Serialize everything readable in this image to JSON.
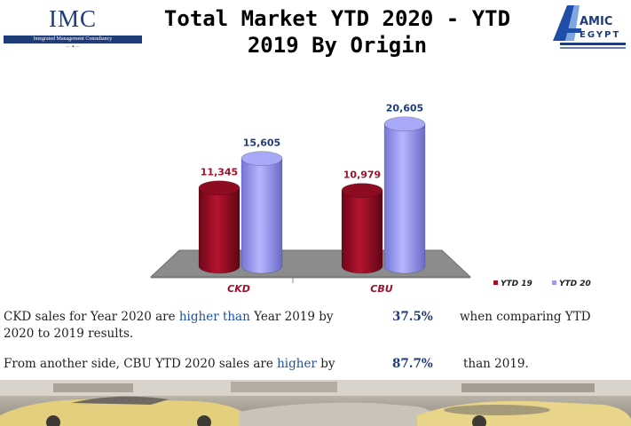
{
  "header": {
    "title_line1": "Total Market YTD 2020 - YTD",
    "title_line2": "2019 By Origin",
    "imc_logo_text": "IMC",
    "imc_logo_sub": "Integrated Management Consultancy",
    "amic_logo_text": "AMIC",
    "amic_logo_sub": "EGYPT"
  },
  "chart_data": {
    "type": "bar",
    "categories": [
      "CKD",
      "CBU"
    ],
    "series": [
      {
        "name": "YTD 19",
        "values": [
          11345,
          10979
        ],
        "labels": [
          "11,345",
          "10,979"
        ],
        "color": "#a0102a",
        "label_color": "#a0102a"
      },
      {
        "name": "YTD 20",
        "values": [
          15605,
          20605
        ],
        "labels": [
          "15,605",
          "20,605"
        ],
        "color": "#9b9bf2",
        "label_color": "#1f3c7a"
      }
    ],
    "ylim": [
      0,
      24000
    ],
    "grid": false,
    "legend_position": "bottom-right",
    "floor_color": "#8c8c8c",
    "category_label_color": "#a0102a"
  },
  "text": {
    "p1_a": "CKD sales for Year 2020 are ",
    "p1_hl": "higher than",
    "p1_b": " Year 2019 by",
    "p1_pct": "37.5%",
    "p1_c": "when comparing YTD",
    "p1_d": "2020 to 2019 results.",
    "p2_a": "From another side, CBU YTD 2020 sales are ",
    "p2_hl": "higher",
    "p2_b": " by",
    "p2_pct": "87.7%",
    "p2_c": "than 2019."
  }
}
